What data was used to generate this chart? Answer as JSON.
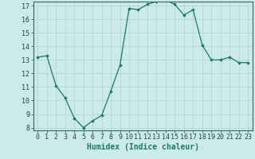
{
  "x": [
    0,
    1,
    2,
    3,
    4,
    5,
    6,
    7,
    8,
    9,
    10,
    11,
    12,
    13,
    14,
    15,
    16,
    17,
    18,
    19,
    20,
    21,
    22,
    23
  ],
  "y": [
    13.2,
    13.3,
    11.1,
    10.2,
    8.7,
    8.0,
    8.5,
    8.9,
    10.7,
    12.6,
    16.8,
    16.7,
    17.1,
    17.3,
    17.4,
    17.1,
    16.3,
    16.7,
    14.1,
    13.0,
    13.0,
    13.2,
    12.8,
    12.8
  ],
  "ylim": [
    8,
    17
  ],
  "yticks": [
    8,
    9,
    10,
    11,
    12,
    13,
    14,
    15,
    16,
    17
  ],
  "xlim": [
    0,
    23
  ],
  "xticks": [
    0,
    1,
    2,
    3,
    4,
    5,
    6,
    7,
    8,
    9,
    10,
    11,
    12,
    13,
    14,
    15,
    16,
    17,
    18,
    19,
    20,
    21,
    22,
    23
  ],
  "xlabel": "Humidex (Indice chaleur)",
  "line_color": "#1a7a6e",
  "marker": "D",
  "marker_size": 1.8,
  "bg_color": "#cceae7",
  "grid_color": "#b0d4d0",
  "xlabel_fontsize": 7,
  "tick_fontsize": 6
}
